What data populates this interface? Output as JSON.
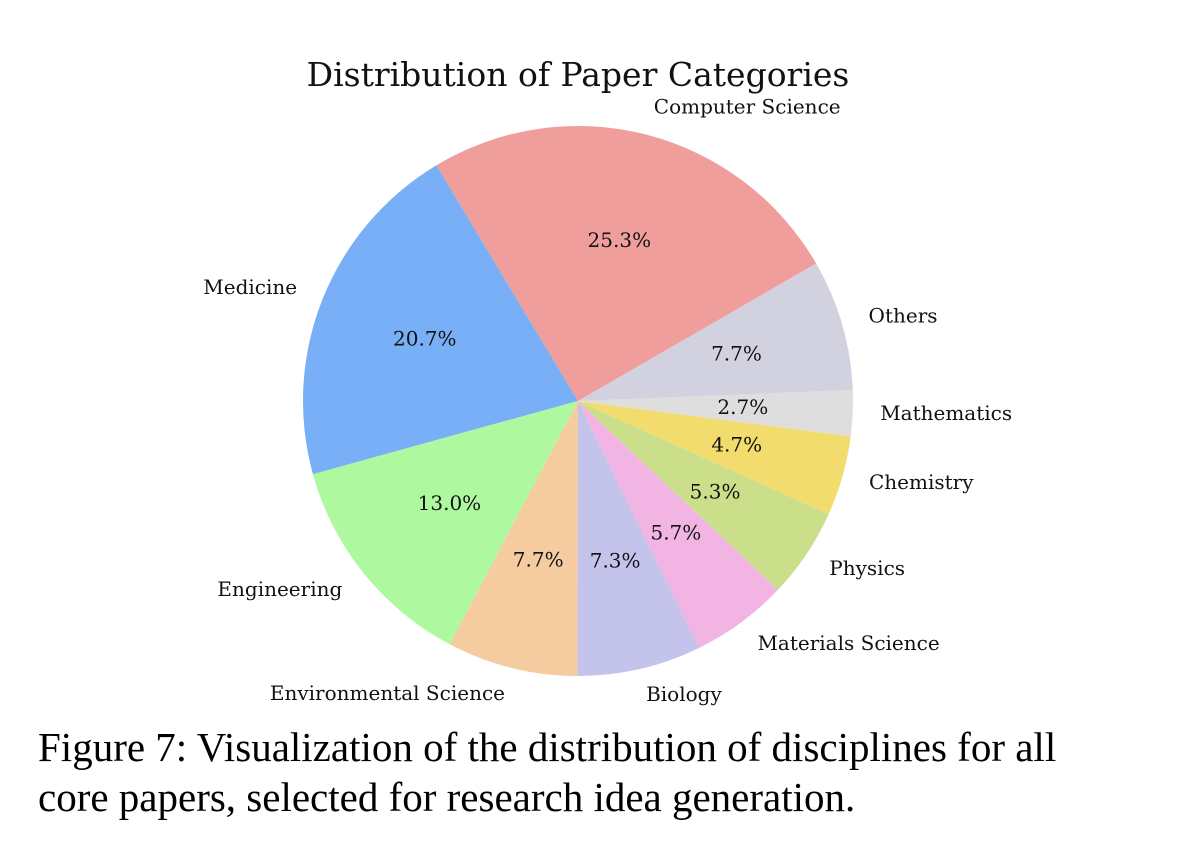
{
  "chart_data": {
    "type": "pie",
    "title": "Distribution of Paper Categories",
    "categories": [
      "Computer Science",
      "Medicine",
      "Engineering",
      "Environmental Science",
      "Biology",
      "Materials Science",
      "Physics",
      "Chemistry",
      "Mathematics",
      "Others"
    ],
    "values": [
      25.3,
      20.7,
      13.0,
      7.7,
      7.3,
      5.7,
      5.3,
      4.7,
      2.7,
      7.7
    ],
    "value_labels": [
      "25.3%",
      "20.7%",
      "13.0%",
      "7.7%",
      "7.3%",
      "5.7%",
      "5.3%",
      "4.7%",
      "2.7%",
      "7.7%"
    ],
    "colors": [
      "#f09e9c",
      "#78aff6",
      "#aef9a0",
      "#f5cc9f",
      "#c4c3ec",
      "#f2b4e3",
      "#cbdf8a",
      "#f2dc6d",
      "#dedede",
      "#d1d1df"
    ]
  },
  "caption": [
    "Figure 7: Visualization of the distribution of disciplines for all",
    "core papers, selected for research idea generation."
  ]
}
